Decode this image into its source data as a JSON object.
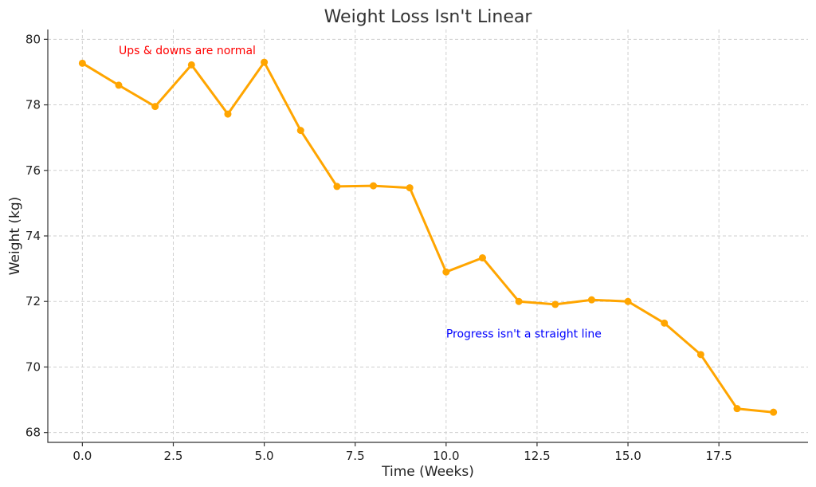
{
  "chart_data": {
    "type": "line",
    "title": "Weight Loss Isn't Linear",
    "xlabel": "Time (Weeks)",
    "ylabel": "Weight (kg)",
    "xlim": [
      -0.95,
      19.95
    ],
    "ylim": [
      67.7,
      80.3
    ],
    "xticks": [
      0,
      2.5,
      5,
      7.5,
      10,
      12.5,
      15,
      17.5
    ],
    "xtick_labels": [
      "0.0",
      "2.5",
      "5.0",
      "7.5",
      "10.0",
      "12.5",
      "15.0",
      "17.5"
    ],
    "yticks": [
      68,
      70,
      72,
      74,
      76,
      78,
      80
    ],
    "ytick_labels": [
      "68",
      "70",
      "72",
      "74",
      "76",
      "78",
      "80"
    ],
    "grid": true,
    "series": [
      {
        "color": "#FFA500",
        "x": [
          0,
          1,
          2,
          3,
          4,
          5,
          6,
          7,
          8,
          9,
          10,
          11,
          12,
          13,
          14,
          15,
          16,
          17,
          18,
          19
        ],
        "y": [
          79.27,
          78.6,
          77.95,
          79.22,
          77.72,
          79.3,
          77.22,
          75.51,
          75.53,
          75.47,
          72.9,
          73.33,
          72.0,
          71.91,
          72.05,
          72.0,
          71.34,
          70.38,
          68.73,
          68.62
        ]
      }
    ],
    "annotations": [
      {
        "text": "Ups & downs are normal",
        "x": 1,
        "y": 79.55,
        "color": "#FF0000"
      },
      {
        "text": "Progress isn't a straight line",
        "x": 10,
        "y": 70.9,
        "color": "#0000FF"
      }
    ]
  }
}
